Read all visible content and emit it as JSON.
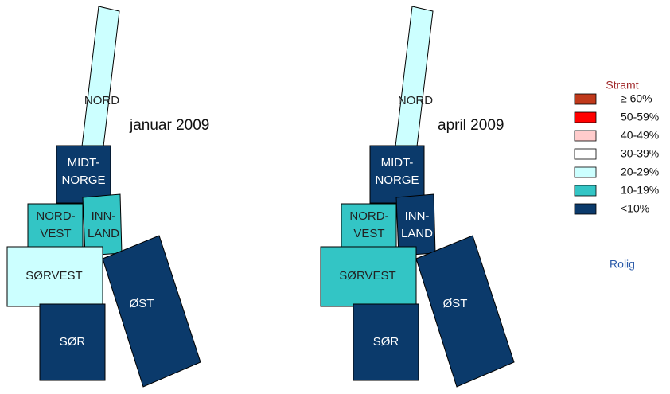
{
  "maps": [
    {
      "title": "januar 2009",
      "regions": [
        {
          "label": [
            "NORD"
          ],
          "color": "#ccffff"
        },
        {
          "label": [
            "MIDT-",
            "NORGE"
          ],
          "color": "#0b3a6b"
        },
        {
          "label": [
            "NORD-",
            "VEST"
          ],
          "color": "#33c5c5"
        },
        {
          "label": [
            "INN-",
            "LAND"
          ],
          "color": "#33c5c5"
        },
        {
          "label": [
            "SØRVEST"
          ],
          "color": "#ccffff"
        },
        {
          "label": [
            "ØST"
          ],
          "color": "#0b3a6b"
        },
        {
          "label": [
            "SØR"
          ],
          "color": "#0b3a6b"
        }
      ]
    },
    {
      "title": "april 2009",
      "regions": [
        {
          "label": [
            "NORD"
          ],
          "color": "#ccffff"
        },
        {
          "label": [
            "MIDT-",
            "NORGE"
          ],
          "color": "#0b3a6b"
        },
        {
          "label": [
            "NORD-",
            "VEST"
          ],
          "color": "#33c5c5"
        },
        {
          "label": [
            "INN-",
            "LAND"
          ],
          "color": "#0b3a6b"
        },
        {
          "label": [
            "SØRVEST"
          ],
          "color": "#33c5c5"
        },
        {
          "label": [
            "ØST"
          ],
          "color": "#0b3a6b"
        },
        {
          "label": [
            "SØR"
          ],
          "color": "#0b3a6b"
        }
      ]
    }
  ],
  "legend": {
    "title": "Stramt",
    "footer": "Rolig",
    "items": [
      {
        "label": "≥ 60%",
        "color": "#c0391b"
      },
      {
        "label": "50-59%",
        "color": "#ff0000"
      },
      {
        "label": "40-49%",
        "color": "#ffcccc"
      },
      {
        "label": "30-39%",
        "color": "#ffffff"
      },
      {
        "label": "20-29%",
        "color": "#ccffff"
      },
      {
        "label": "10-19%",
        "color": "#33c5c5"
      },
      {
        "label": "<10%",
        "color": "#0b3a6b"
      }
    ]
  }
}
